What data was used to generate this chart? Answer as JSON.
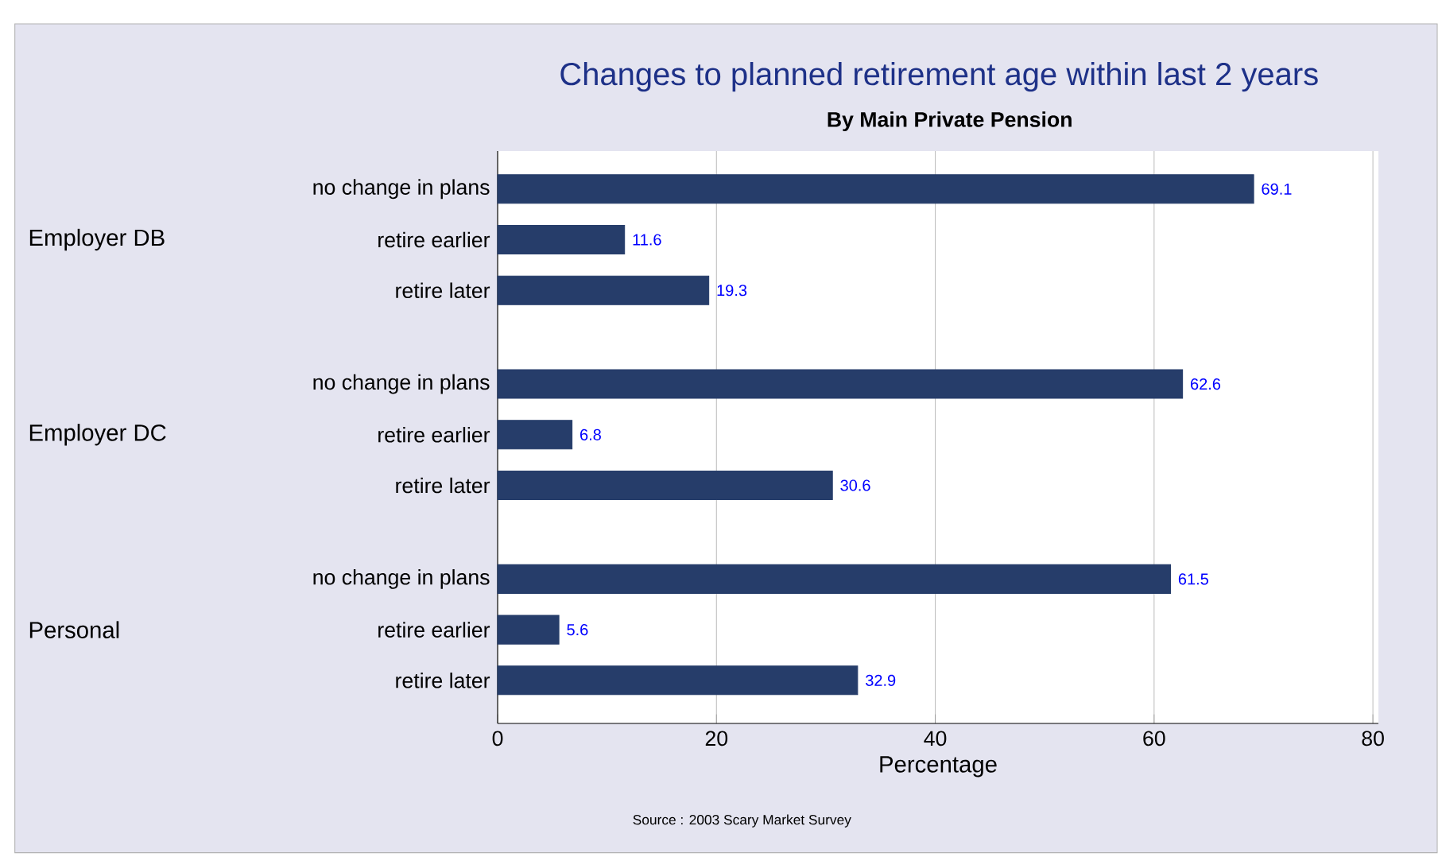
{
  "chart_data": {
    "type": "bar",
    "orientation": "horizontal",
    "title": "Changes to planned retirement age within last 2 years",
    "subtitle": "By Main Private Pension",
    "categories": [
      "no change in plans",
      "retire earlier",
      "retire later",
      "no change in plans",
      "retire earlier",
      "retire later",
      "no change in plans",
      "retire earlier",
      "retire later"
    ],
    "values": [
      69.1,
      11.6,
      19.3,
      62.6,
      6.8,
      30.6,
      61.5,
      5.6,
      32.9
    ],
    "color": "#263d6a",
    "data_labels": true,
    "xlabel": "Percentage",
    "xlim": [
      0,
      80.5
    ],
    "xticks": [
      0,
      20,
      40,
      60,
      80
    ],
    "grid": "x",
    "annotations": [
      "Employer DB",
      "Employer DC",
      "Personal",
      "Source : 2003 Scary Market Survey"
    ]
  }
}
